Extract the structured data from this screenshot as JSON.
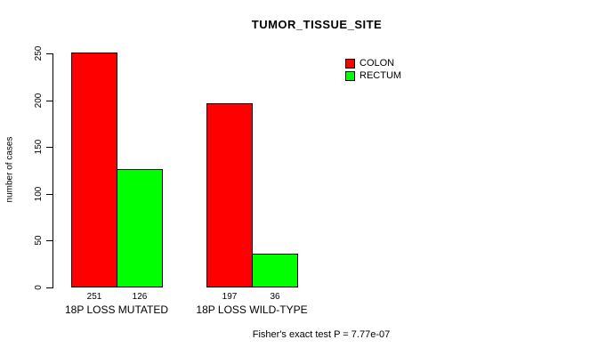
{
  "chart_data": {
    "type": "bar",
    "title": "TUMOR_TISSUE_SITE",
    "xlabel": "",
    "ylabel": "number of cases",
    "categories": [
      "18P LOSS MUTATED",
      "18P LOSS WILD-TYPE"
    ],
    "series": [
      {
        "name": "COLON",
        "color": "#FF0000",
        "values": [
          251,
          197
        ]
      },
      {
        "name": "RECTUM",
        "color": "#00FF00",
        "values": [
          126,
          36
        ]
      }
    ],
    "bar_value_labels": [
      [
        251,
        126
      ],
      [
        197,
        36
      ]
    ],
    "yticks": [
      0,
      50,
      100,
      150,
      200,
      250
    ],
    "ylim": [
      0,
      250
    ],
    "grid": false,
    "legend_position": "top-right",
    "annotation": "Fisher's exact test P = 7.77e-07"
  },
  "colors": {
    "background": "#FFFFFF",
    "axis": "#000000",
    "colon": "#FF0000",
    "rectum": "#00FF00"
  }
}
